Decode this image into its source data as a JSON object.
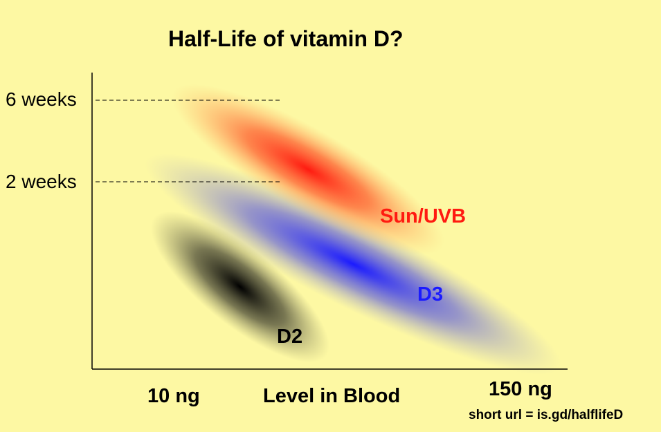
{
  "title": "Half-Life of vitamin D?",
  "y_labels": [
    "6 weeks",
    "2 weeks"
  ],
  "x_labels": {
    "left": "10 ng",
    "center": "Level in Blood",
    "right": "150 ng"
  },
  "footnote": "short url = is.gd/halflifeD",
  "series": [
    {
      "name": "Sun/UVB",
      "color": "#ff2020"
    },
    {
      "name": "D3",
      "color": "#2020ff"
    },
    {
      "name": "D2",
      "color": "#000000"
    }
  ],
  "background": "#fdf8a3"
}
